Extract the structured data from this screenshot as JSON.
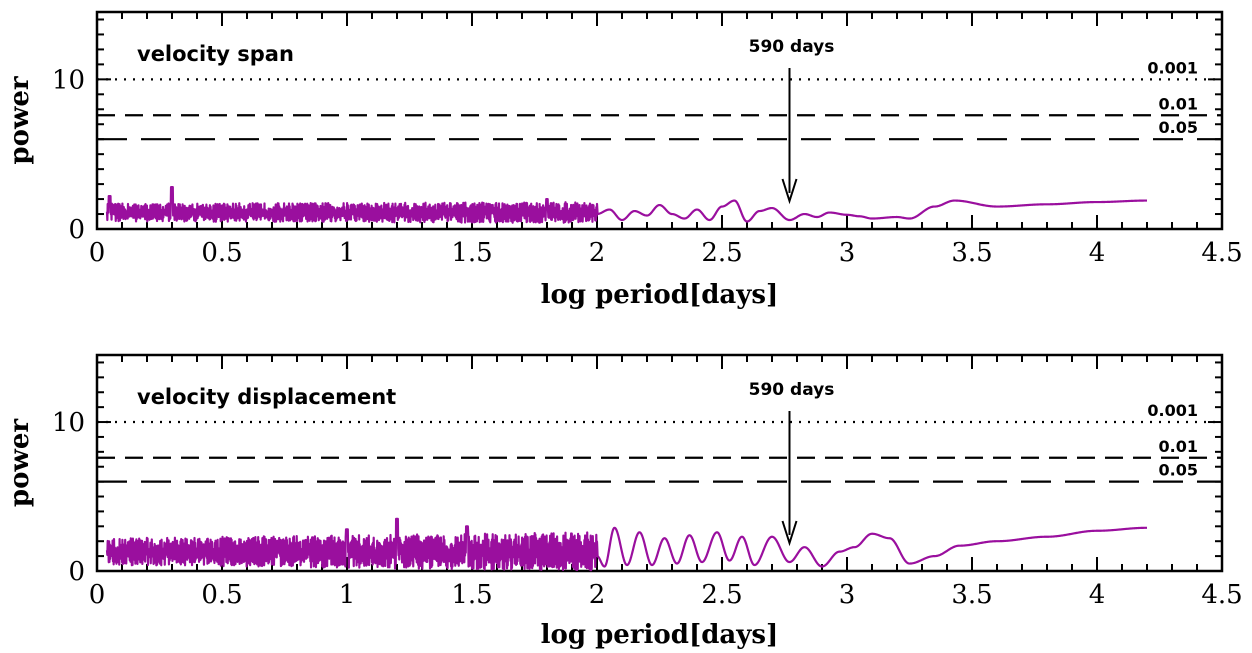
{
  "colors": {
    "series": "#9a0f9e",
    "axes": "#000000",
    "background": "#ffffff"
  },
  "chart_data": [
    {
      "type": "line",
      "inset_label": "velocity span",
      "xlabel": "log period[days]",
      "ylabel": "power",
      "xlim": [
        0,
        4.5
      ],
      "ylim": [
        0,
        14.5
      ],
      "xticks": [
        "0",
        "0.5",
        "1",
        "1.5",
        "2",
        "2.5",
        "3",
        "3.5",
        "4",
        "4.5"
      ],
      "yticks": [
        "0",
        "10"
      ],
      "fap_levels": [
        {
          "label": "0.001",
          "value": 10.0,
          "style": "dotted"
        },
        {
          "label": "0.01",
          "value": 7.6,
          "style": "short-dash"
        },
        {
          "label": "0.05",
          "value": 6.0,
          "style": "long-dash"
        }
      ],
      "annotation": {
        "text": "590 days",
        "x": 2.77
      },
      "series": [
        {
          "x_range": [
            0.04,
            4.2
          ],
          "noise": {
            "x_end": 2.0,
            "base": 1.1,
            "amp_start": 0.6,
            "amp_end": 0.7,
            "spikes": [
              [
                0.3,
                2.8
              ],
              [
                0.05,
                2.2
              ],
              [
                1.8,
                2.0
              ]
            ]
          },
          "smooth": [
            [
              2.0,
              1.0
            ],
            [
              2.05,
              1.3
            ],
            [
              2.1,
              0.6
            ],
            [
              2.15,
              1.2
            ],
            [
              2.2,
              0.9
            ],
            [
              2.25,
              1.6
            ],
            [
              2.3,
              1.0
            ],
            [
              2.35,
              0.7
            ],
            [
              2.4,
              1.3
            ],
            [
              2.45,
              0.6
            ],
            [
              2.5,
              1.5
            ],
            [
              2.55,
              1.9
            ],
            [
              2.6,
              0.5
            ],
            [
              2.65,
              1.2
            ],
            [
              2.7,
              1.4
            ],
            [
              2.77,
              0.6
            ],
            [
              2.83,
              1.0
            ],
            [
              2.88,
              0.8
            ],
            [
              2.93,
              1.1
            ],
            [
              3.0,
              0.95
            ],
            [
              3.05,
              0.85
            ],
            [
              3.1,
              0.7
            ],
            [
              3.2,
              0.8
            ],
            [
              3.25,
              0.7
            ],
            [
              3.35,
              1.5
            ],
            [
              3.43,
              1.9
            ],
            [
              3.6,
              1.5
            ],
            [
              3.8,
              1.65
            ],
            [
              4.0,
              1.8
            ],
            [
              4.2,
              1.9
            ]
          ]
        }
      ]
    },
    {
      "type": "line",
      "inset_label": "velocity displacement",
      "xlabel": "log period[days]",
      "ylabel": "power",
      "xlim": [
        0,
        4.5
      ],
      "ylim": [
        0,
        14.5
      ],
      "xticks": [
        "0",
        "0.5",
        "1",
        "1.5",
        "2",
        "2.5",
        "3",
        "3.5",
        "4",
        "4.5"
      ],
      "yticks": [
        "0",
        "10"
      ],
      "fap_levels": [
        {
          "label": "0.001",
          "value": 10.0,
          "style": "dotted"
        },
        {
          "label": "0.01",
          "value": 7.6,
          "style": "short-dash"
        },
        {
          "label": "0.05",
          "value": 6.0,
          "style": "long-dash"
        }
      ],
      "annotation": {
        "text": "590 days",
        "x": 2.77
      },
      "series": [
        {
          "x_range": [
            0.04,
            4.2
          ],
          "noise": {
            "x_end": 2.0,
            "base": 1.3,
            "amp_start": 0.9,
            "amp_end": 1.3,
            "spikes": [
              [
                1.2,
                3.5
              ],
              [
                1.48,
                3.0
              ],
              [
                1.0,
                2.8
              ]
            ]
          },
          "smooth": [
            [
              2.0,
              1.0
            ],
            [
              2.03,
              0.3
            ],
            [
              2.07,
              2.9
            ],
            [
              2.12,
              0.4
            ],
            [
              2.17,
              2.6
            ],
            [
              2.22,
              0.4
            ],
            [
              2.27,
              2.2
            ],
            [
              2.32,
              0.5
            ],
            [
              2.37,
              2.4
            ],
            [
              2.42,
              0.6
            ],
            [
              2.48,
              2.6
            ],
            [
              2.53,
              0.7
            ],
            [
              2.58,
              2.3
            ],
            [
              2.63,
              0.4
            ],
            [
              2.7,
              2.3
            ],
            [
              2.77,
              0.6
            ],
            [
              2.83,
              1.6
            ],
            [
              2.9,
              0.3
            ],
            [
              2.97,
              1.3
            ],
            [
              3.03,
              1.6
            ],
            [
              3.1,
              2.5
            ],
            [
              3.17,
              2.2
            ],
            [
              3.25,
              0.5
            ],
            [
              3.35,
              1.0
            ],
            [
              3.45,
              1.7
            ],
            [
              3.6,
              2.0
            ],
            [
              3.8,
              2.3
            ],
            [
              4.0,
              2.7
            ],
            [
              4.2,
              2.9
            ]
          ]
        }
      ]
    }
  ]
}
